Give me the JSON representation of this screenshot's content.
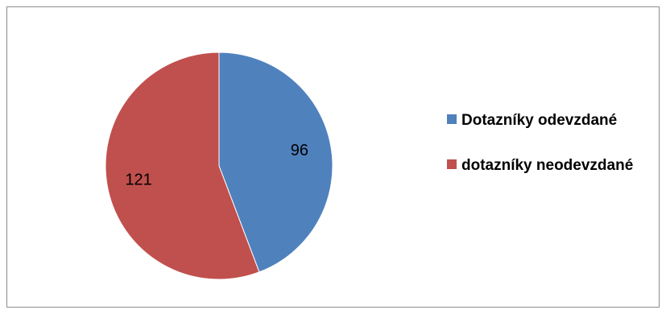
{
  "chart_data": {
    "type": "pie",
    "title": "",
    "slices": [
      {
        "label": "Dotazníky odevzdané",
        "value": 96,
        "color": "#4f81bd"
      },
      {
        "label": "dotazníky neodevzdané",
        "value": 121,
        "color": "#c0504d"
      }
    ],
    "legend_position": "right"
  }
}
